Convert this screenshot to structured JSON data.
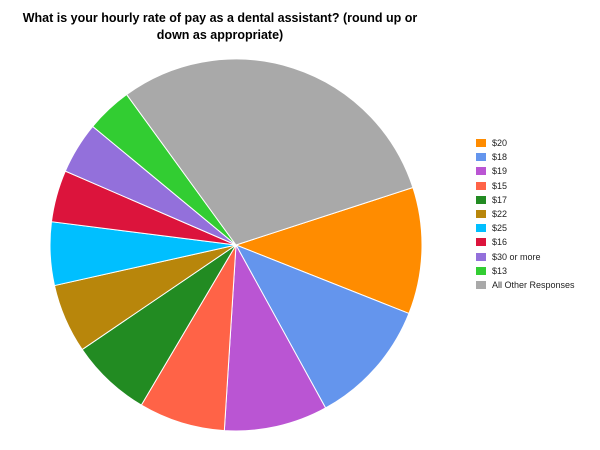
{
  "chart_data": {
    "type": "pie",
    "title": "What is your hourly rate of pay as a dental assistant? (round up or down as appropriate)",
    "slices": [
      {
        "label": "$20",
        "value": 11.0,
        "color": "#ff8c00"
      },
      {
        "label": "$18",
        "value": 11.0,
        "color": "#6495ed"
      },
      {
        "label": "$19",
        "value": 9.0,
        "color": "#ba55d3"
      },
      {
        "label": "$15",
        "value": 7.5,
        "color": "#ff6347"
      },
      {
        "label": "$17",
        "value": 7.0,
        "color": "#228b22"
      },
      {
        "label": "$22",
        "value": 6.0,
        "color": "#b8860b"
      },
      {
        "label": "$25",
        "value": 5.5,
        "color": "#00bfff"
      },
      {
        "label": "$16",
        "value": 4.5,
        "color": "#dc143c"
      },
      {
        "label": "$30 or more",
        "value": 4.5,
        "color": "#9370db"
      },
      {
        "label": "$13",
        "value": 4.0,
        "color": "#32cd32"
      },
      {
        "label": "All Other Responses",
        "value": 30.0,
        "color": "#a9a9a9"
      }
    ],
    "start_angle_deg": 72,
    "direction": "clockwise",
    "legend_position": "right"
  }
}
